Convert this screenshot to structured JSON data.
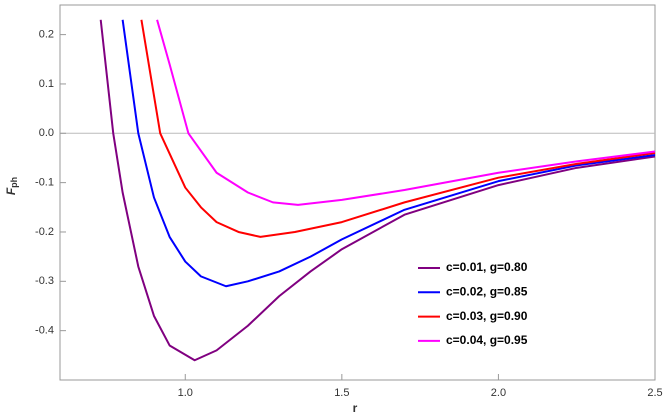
{
  "chart_data": {
    "type": "line",
    "xlabel": "r",
    "ylabel": "F",
    "ylabel_subscript": "ph",
    "xlim": [
      0.6,
      2.5
    ],
    "ylim": [
      -0.5,
      0.26
    ],
    "xticks": [
      {
        "value": 1.0,
        "label": "1.0"
      },
      1.5,
      {
        "value": 2.0,
        "label": "2.0"
      },
      2.5
    ],
    "yticks": [
      -0.4,
      -0.3,
      -0.2,
      -0.1,
      {
        "value": 0,
        "label": "0.0"
      },
      0.1,
      0.2
    ],
    "zero_line": true,
    "legend": "lower right",
    "series": [
      {
        "name": "c=0.01, g=0.80",
        "color": "#800080",
        "x": [
          0.73,
          0.77,
          0.8,
          0.85,
          0.9,
          0.95,
          1.03,
          1.1,
          1.2,
          1.3,
          1.4,
          1.5,
          1.7,
          2.0,
          2.25,
          2.5
        ],
        "values": [
          0.23,
          0,
          -0.12,
          -0.27,
          -0.37,
          -0.43,
          -0.46,
          -0.44,
          -0.39,
          -0.33,
          -0.28,
          -0.235,
          -0.165,
          -0.105,
          -0.07,
          -0.047
        ]
      },
      {
        "name": "c=0.02, g=0.85",
        "color": "#0000ff",
        "x": [
          0.8,
          0.85,
          0.9,
          0.95,
          1.0,
          1.05,
          1.13,
          1.2,
          1.3,
          1.4,
          1.5,
          1.7,
          2.0,
          2.25,
          2.5
        ],
        "values": [
          0.23,
          0,
          -0.13,
          -0.21,
          -0.26,
          -0.29,
          -0.31,
          -0.3,
          -0.28,
          -0.25,
          -0.215,
          -0.155,
          -0.097,
          -0.065,
          -0.044
        ]
      },
      {
        "name": "c=0.03, g=0.90",
        "color": "#ff0000",
        "x": [
          0.86,
          0.92,
          1.0,
          1.05,
          1.1,
          1.17,
          1.24,
          1.35,
          1.5,
          1.7,
          2.0,
          2.25,
          2.5
        ],
        "values": [
          0.23,
          0,
          -0.11,
          -0.15,
          -0.18,
          -0.2,
          -0.21,
          -0.2,
          -0.18,
          -0.14,
          -0.09,
          -0.062,
          -0.04
        ]
      },
      {
        "name": "c=0.04, g=0.95",
        "color": "#ff00ff",
        "x": [
          0.91,
          0.95,
          1.01,
          1.1,
          1.2,
          1.28,
          1.36,
          1.5,
          1.7,
          2.0,
          2.25,
          2.5
        ],
        "values": [
          0.23,
          0.14,
          0,
          -0.08,
          -0.12,
          -0.14,
          -0.145,
          -0.135,
          -0.115,
          -0.08,
          -0.057,
          -0.037
        ]
      }
    ]
  }
}
